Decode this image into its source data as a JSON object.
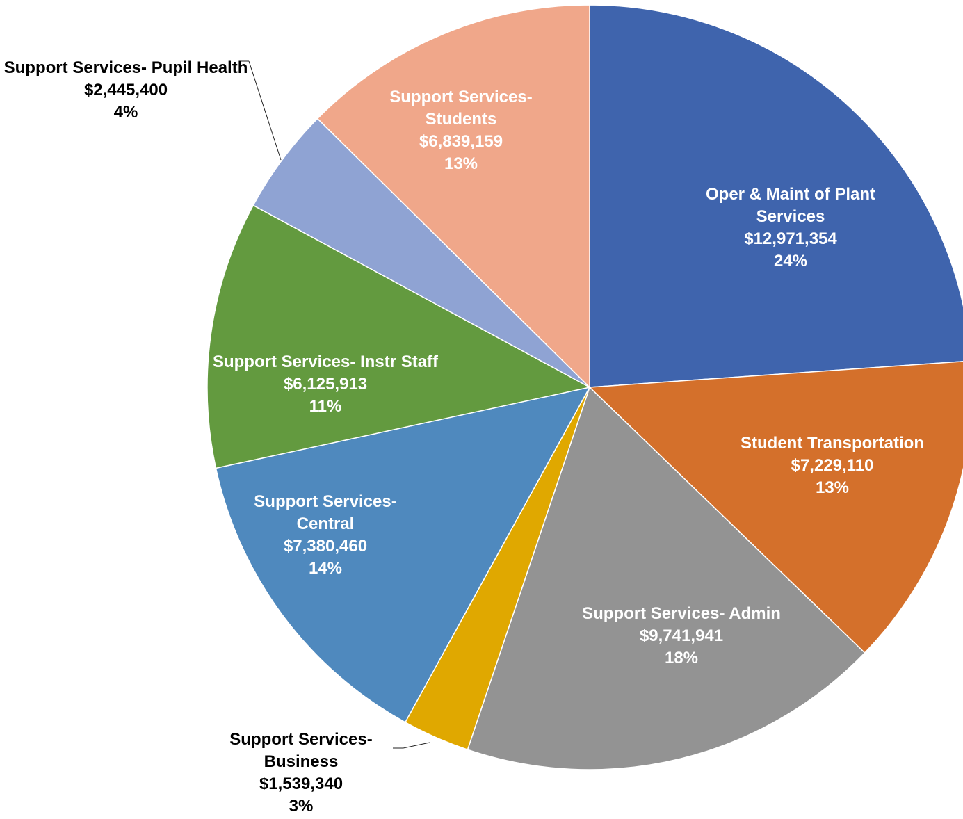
{
  "chart_data": {
    "type": "pie",
    "categories": [
      "Oper & Maint of Plant Services",
      "Student Transportation",
      "Support Services- Admin",
      "Support Services- Business",
      "Support Services- Central",
      "Support Services- Instr Staff",
      "Support Services- Pupil Health",
      "Support Services- Students"
    ],
    "values": [
      12971354,
      7229110,
      9741941,
      1539340,
      7380460,
      6125913,
      2445400,
      6839159
    ],
    "value_labels": [
      "$12,971,354",
      "$7,229,110",
      "$9,741,941",
      "$1,539,340",
      "$7,380,460",
      "$6,125,913",
      "$2,445,400",
      "$6,839,159"
    ],
    "percents": [
      24,
      13,
      18,
      3,
      14,
      11,
      4,
      13
    ],
    "percent_labels": [
      "24%",
      "13%",
      "18%",
      "3%",
      "14%",
      "11%",
      "4%",
      "13%"
    ],
    "colors": [
      "#3f64ad",
      "#d4702b",
      "#939393",
      "#e0a800",
      "#4f89be",
      "#639a3f",
      "#8fa3d3",
      "#f0a78a"
    ]
  }
}
